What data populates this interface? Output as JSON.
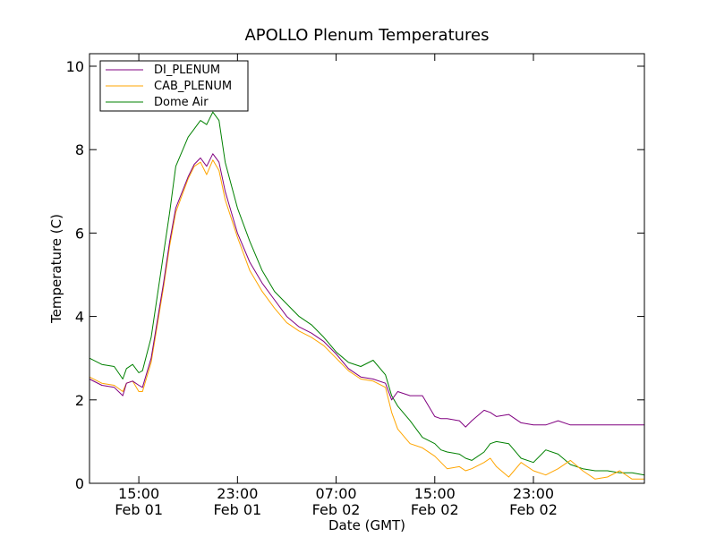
{
  "chart_data": {
    "type": "line",
    "title": "APOLLO Plenum Temperatures",
    "xlabel": "Date (GMT)",
    "ylabel": "Temperature (C)",
    "x_unit": "hours since Feb 01 11:00 GMT",
    "xlim": [
      0,
      45
    ],
    "ylim": [
      0,
      10.3
    ],
    "yticks": [
      0,
      2,
      4,
      6,
      8,
      10
    ],
    "xticks": [
      {
        "x": 4,
        "time": "15:00",
        "date": "Feb 01"
      },
      {
        "x": 12,
        "time": "23:00",
        "date": "Feb 01"
      },
      {
        "x": 20,
        "time": "07:00",
        "date": "Feb 02"
      },
      {
        "x": 28,
        "time": "15:00",
        "date": "Feb 02"
      },
      {
        "x": 36,
        "time": "23:00",
        "date": "Feb 02"
      }
    ],
    "grid": false,
    "legend_position": "top-left",
    "x": [
      0,
      1,
      2,
      2.7,
      3,
      3.5,
      4,
      4.3,
      5,
      6,
      6.5,
      7,
      8,
      8.5,
      9,
      9.5,
      10,
      10.5,
      11,
      12,
      13,
      14,
      15,
      16,
      17,
      18,
      19,
      20,
      21,
      22,
      23,
      24,
      24.5,
      25,
      26,
      27,
      28,
      28.5,
      29,
      30,
      30.5,
      31,
      32,
      32.5,
      33,
      34,
      35,
      36,
      37,
      38,
      39,
      40,
      41,
      42,
      43,
      44,
      45
    ],
    "series": [
      {
        "name": "DI_PLENUM",
        "color": "#800080",
        "values": [
          2.5,
          2.35,
          2.3,
          2.1,
          2.4,
          2.45,
          2.35,
          2.3,
          3.0,
          4.8,
          5.8,
          6.6,
          7.35,
          7.65,
          7.8,
          7.6,
          7.9,
          7.7,
          7.0,
          6.0,
          5.3,
          4.8,
          4.4,
          4.0,
          3.75,
          3.6,
          3.4,
          3.1,
          2.75,
          2.55,
          2.5,
          2.4,
          2.0,
          2.2,
          2.1,
          2.1,
          1.6,
          1.55,
          1.55,
          1.5,
          1.35,
          1.5,
          1.75,
          1.7,
          1.6,
          1.65,
          1.45,
          1.4,
          1.4,
          1.5,
          1.4,
          1.4,
          1.4,
          1.4,
          1.4,
          1.4,
          1.4
        ]
      },
      {
        "name": "CAB_PLENUM",
        "color": "#ffa500",
        "values": [
          2.55,
          2.4,
          2.35,
          2.2,
          2.4,
          2.45,
          2.2,
          2.2,
          2.9,
          4.7,
          5.7,
          6.5,
          7.3,
          7.6,
          7.7,
          7.4,
          7.75,
          7.5,
          6.8,
          5.9,
          5.1,
          4.6,
          4.2,
          3.85,
          3.65,
          3.5,
          3.3,
          3.0,
          2.7,
          2.5,
          2.45,
          2.3,
          1.7,
          1.3,
          0.95,
          0.85,
          0.65,
          0.5,
          0.35,
          0.4,
          0.3,
          0.35,
          0.5,
          0.6,
          0.4,
          0.15,
          0.5,
          0.3,
          0.2,
          0.35,
          0.55,
          0.3,
          0.1,
          0.15,
          0.3,
          0.1,
          0.1
        ]
      },
      {
        "name": "Dome Air",
        "color": "#008000",
        "values": [
          3.0,
          2.85,
          2.8,
          2.5,
          2.75,
          2.85,
          2.65,
          2.7,
          3.5,
          5.5,
          6.5,
          7.6,
          8.3,
          8.5,
          8.7,
          8.6,
          8.9,
          8.7,
          7.7,
          6.6,
          5.8,
          5.1,
          4.6,
          4.3,
          4.0,
          3.8,
          3.5,
          3.15,
          2.9,
          2.8,
          2.95,
          2.6,
          2.1,
          1.85,
          1.5,
          1.1,
          0.95,
          0.8,
          0.75,
          0.7,
          0.6,
          0.55,
          0.75,
          0.95,
          1.0,
          0.95,
          0.6,
          0.5,
          0.8,
          0.7,
          0.45,
          0.35,
          0.3,
          0.3,
          0.25,
          0.25,
          0.2
        ]
      }
    ]
  }
}
